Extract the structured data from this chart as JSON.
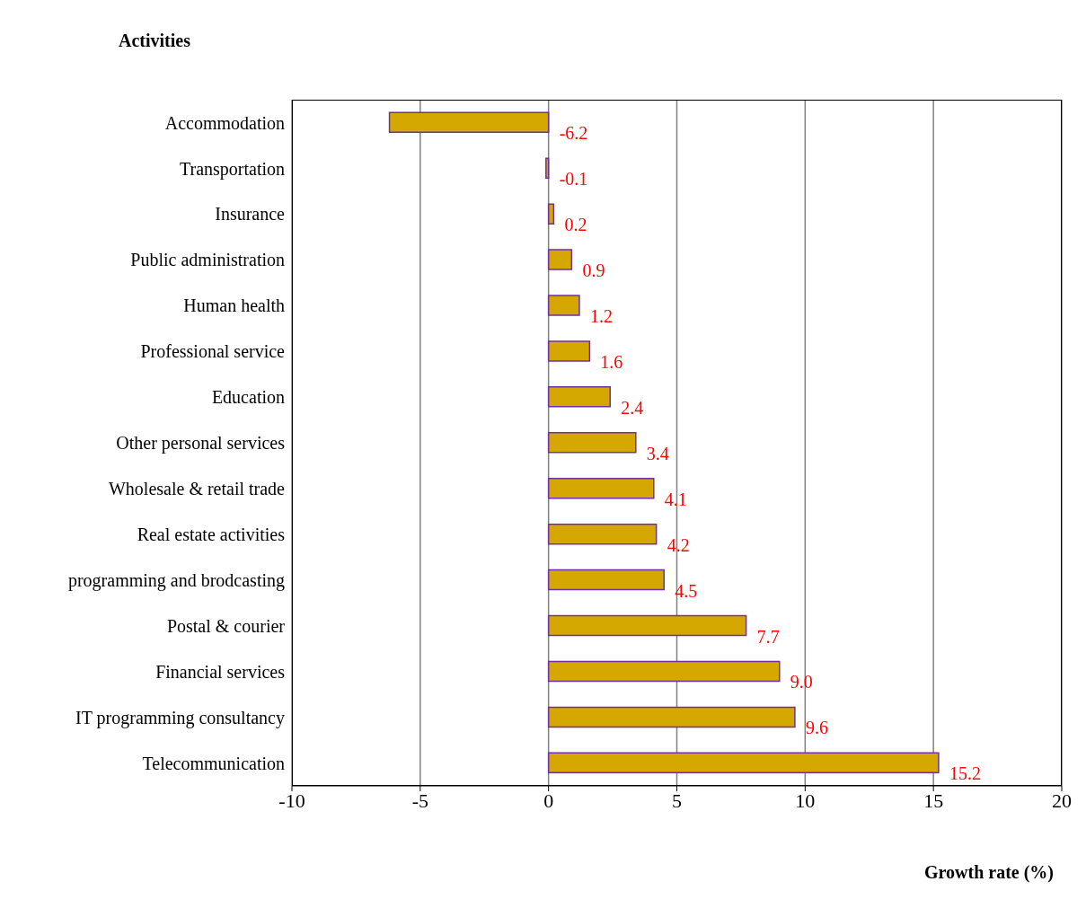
{
  "chart_data": {
    "type": "bar",
    "orientation": "horizontal",
    "ylabel": "Activities",
    "xlabel": "Growth rate (%)",
    "categories": [
      "Accommodation",
      "Transportation",
      "Insurance",
      "Public administration",
      "Human health",
      "Professional service",
      "Education",
      "Other personal services",
      "Wholesale & retail trade",
      "Real estate activities",
      "programming and brodcasting",
      "Postal & courier",
      "Financial services",
      "IT programming consultancy",
      "Telecommunication"
    ],
    "values": [
      -6.2,
      -0.1,
      0.2,
      0.9,
      1.2,
      1.6,
      2.4,
      3.4,
      4.1,
      4.2,
      4.5,
      7.7,
      9.0,
      9.6,
      15.2
    ],
    "value_labels": [
      "-6.2",
      "-0.1",
      "0.2",
      "0.9",
      "1.2",
      "1.6",
      "2.4",
      "3.4",
      "4.1",
      "4.2",
      "4.5",
      "7.7",
      "9.0",
      "9.6",
      "15.2"
    ],
    "color": "#d4a800",
    "xlim": [
      -10,
      20
    ],
    "xticks": [
      -10,
      -5,
      0,
      5,
      10,
      15,
      20
    ],
    "grid": "x"
  }
}
